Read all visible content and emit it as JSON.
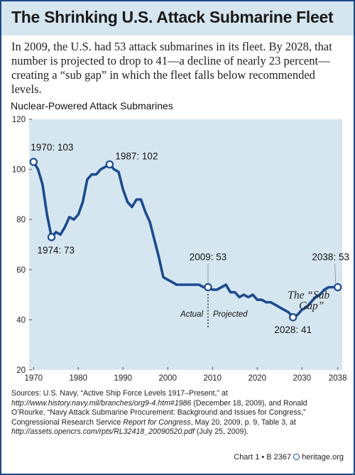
{
  "header": {
    "title": "The Shrinking U.S. Attack Submarine Fleet",
    "subtitle": "In 2009, the U.S. had 53 attack submarines in its fleet. By 2028, that number is projected to drop to 41—a decline of nearly 23 percent—creating a “sub gap” in which the fleet falls below recommended levels."
  },
  "chart_data": {
    "type": "line",
    "title": "Nuclear-Powered Attack Submarines",
    "xlim": [
      1969,
      2039
    ],
    "ylim": [
      20,
      120
    ],
    "grid": false,
    "x_ticks": [
      "1970",
      "1980",
      "1990",
      "2000",
      "2010",
      "2020",
      "2030",
      "2038"
    ],
    "y_ticks": [
      "20",
      "40",
      "60",
      "80",
      "100",
      "120"
    ],
    "series": [
      {
        "color": "#1b4b8f",
        "x": [
          1970,
          1971,
          1972,
          1973,
          1974,
          1975,
          1976,
          1977,
          1978,
          1979,
          1980,
          1981,
          1982,
          1983,
          1984,
          1985,
          1986,
          1987,
          1988,
          1989,
          1990,
          1991,
          1992,
          1993,
          1994,
          1995,
          1996,
          1997,
          1998,
          1999,
          2000,
          2001,
          2002,
          2003,
          2004,
          2005,
          2006,
          2007,
          2008,
          2009,
          2010,
          2011,
          2012,
          2013,
          2014,
          2015,
          2016,
          2017,
          2018,
          2019,
          2020,
          2021,
          2022,
          2023,
          2024,
          2025,
          2026,
          2027,
          2028,
          2029,
          2030,
          2031,
          2032,
          2033,
          2034,
          2035,
          2036,
          2037,
          2038
        ],
        "values": [
          103,
          100,
          94,
          82,
          73,
          75,
          74,
          77,
          81,
          80,
          82,
          87,
          96,
          98,
          98,
          100,
          101,
          102,
          100,
          99,
          92,
          87,
          85,
          88,
          88,
          83,
          79,
          72,
          65,
          57,
          56,
          55,
          54,
          54,
          54,
          54,
          54,
          54,
          53,
          53,
          52,
          52,
          53,
          54,
          51,
          51,
          49,
          50,
          49,
          50,
          48,
          48,
          47,
          47,
          46,
          45,
          44,
          43,
          41,
          42,
          44,
          45,
          47,
          49,
          50,
          52,
          53,
          53,
          53
        ],
        "projected_from": 2009
      }
    ],
    "annotations": [
      {
        "label": "1970: 103",
        "x": 1970,
        "y": 103
      },
      {
        "label": "1974: 73",
        "x": 1974,
        "y": 73
      },
      {
        "label": "1987: 102",
        "x": 1987,
        "y": 102
      },
      {
        "label": "2009: 53",
        "x": 2009,
        "y": 53
      },
      {
        "label": "2028: 41",
        "x": 2028,
        "y": 41
      },
      {
        "label": "2038: 53",
        "x": 2038,
        "y": 53
      }
    ],
    "divider_labels": {
      "actual": "Actual",
      "projected": "Projected"
    },
    "gap_label_line1": "The “Sub",
    "gap_label_line2": "Gap”"
  },
  "sources": {
    "lead": "Sources:",
    "part1": " U.S. Navy, “Active Ship Force Levels 1917–Present,” at ",
    "link1": "http://www.history.navy.mil/branches/org9-4.htm#1986",
    "part2": " (December 18, 2009), and Ronald O’Rourke, “Navy Attack Submarine Procurement: Background and Issues for Congress,” Congressional Research Service ",
    "report": "Report for Congress",
    "part3": ", May 20, 2009, p. 9, Table 3, at ",
    "link2": "http://assets.opencrs.com/rpts/RL32418_20090520.pdf",
    "part4": " (July 25, 2009)."
  },
  "footer": {
    "credit": "Chart 1 • B 2367",
    "site": "heritage.org"
  },
  "colors": {
    "brand": "#1a4a8a",
    "plot_bg": "#d6e6f1",
    "line": "#1b4b8f"
  }
}
